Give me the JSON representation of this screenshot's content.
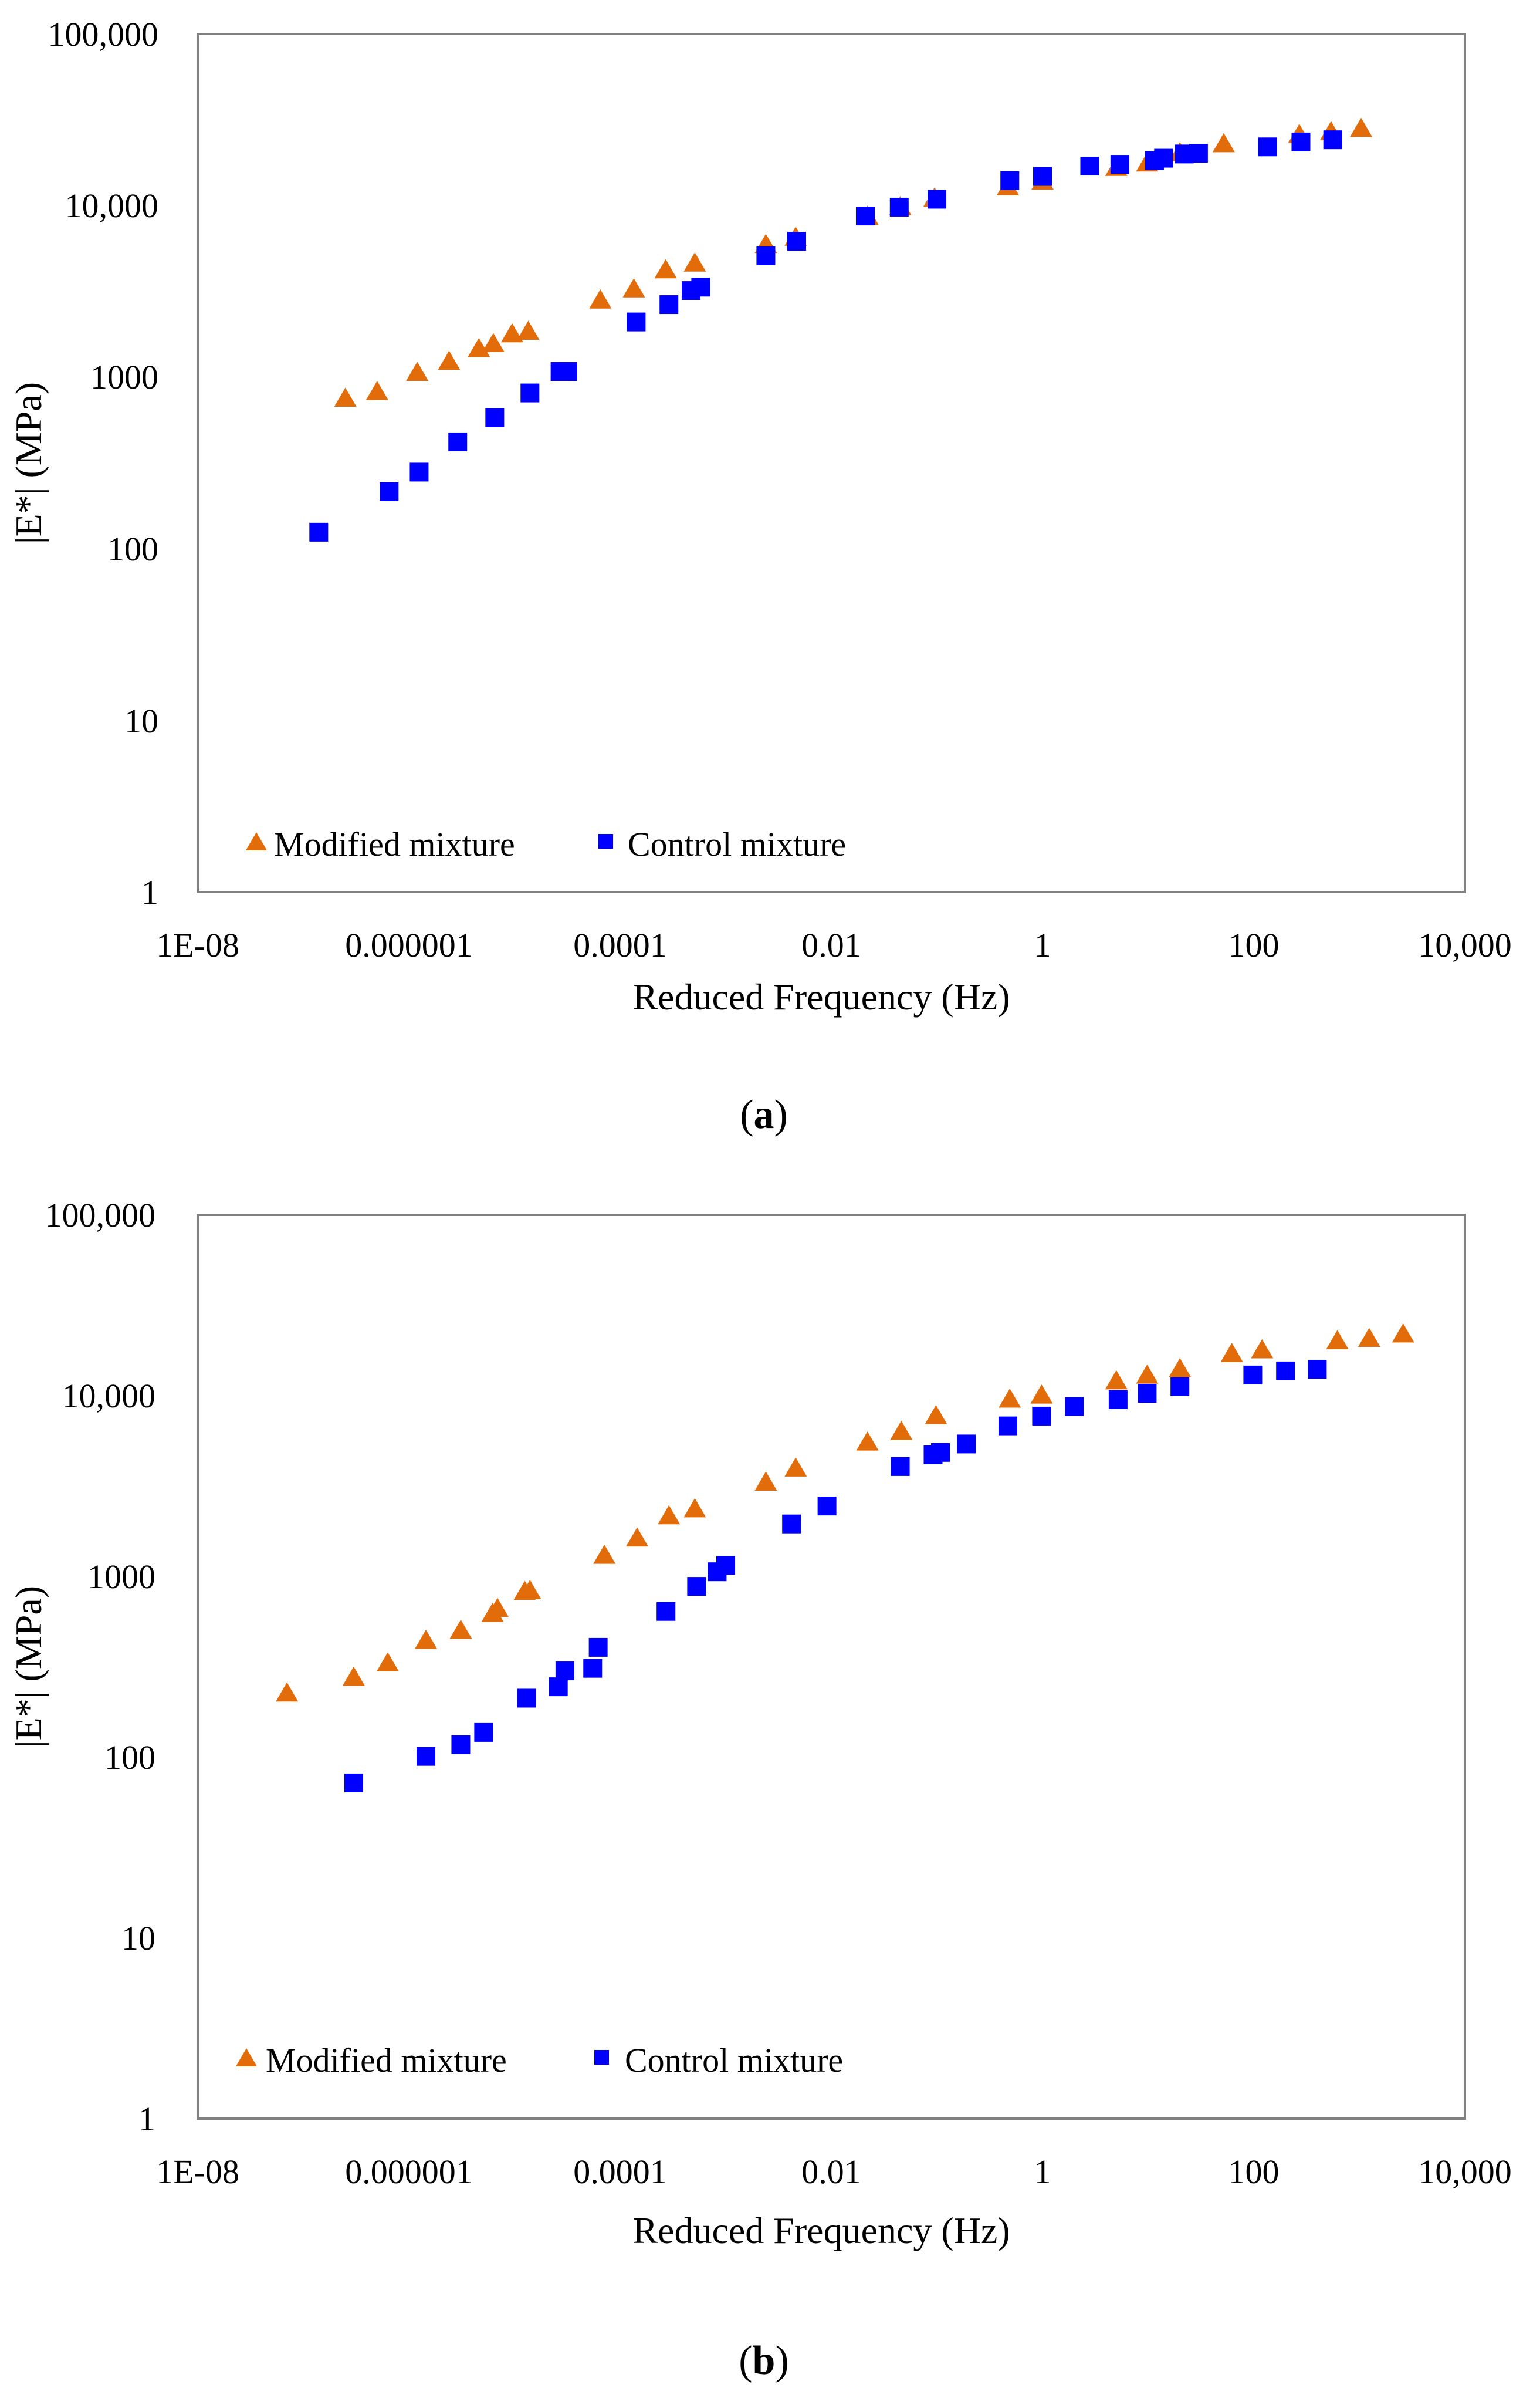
{
  "chart_data": [
    {
      "type": "scatter",
      "panel_label": {
        "open": "(",
        "letter": "a",
        "close": ")"
      },
      "xlabel": "Reduced Frequency (Hz)",
      "ylabel": "|E*| (MPa)",
      "xscale": "log",
      "yscale": "log",
      "xlim": [
        1e-08,
        10000
      ],
      "ylim": [
        1,
        100000
      ],
      "x_tick_labels": [
        "1E-08",
        "0.000001",
        "0.0001",
        "0.01",
        "1",
        "100",
        "10,000"
      ],
      "y_tick_labels": [
        "1",
        "10",
        "100",
        "1000",
        "10,000",
        "100,000"
      ],
      "legend": "bottom-left",
      "grid": false,
      "series": [
        {
          "name": "Modified mixture",
          "marker": "triangle",
          "color": "#E36C0A",
          "points": [
            [
              2.5e-07,
              750
            ],
            [
              5e-07,
              820
            ],
            [
              1.2e-06,
              1060
            ],
            [
              2.4e-06,
              1230
            ],
            [
              4.6e-06,
              1460
            ],
            [
              6.3e-06,
              1560
            ],
            [
              9.5e-06,
              1780
            ],
            [
              1.35e-05,
              1840
            ],
            [
              6.5e-05,
              2800
            ],
            [
              0.000135,
              3250
            ],
            [
              0.00027,
              4200
            ],
            [
              0.00051,
              4600
            ],
            [
              0.0024,
              5900
            ],
            [
              0.0046,
              6500
            ],
            [
              0.022,
              8600
            ],
            [
              0.045,
              9800
            ],
            [
              0.095,
              11000
            ],
            [
              0.47,
              12800
            ],
            [
              1.0,
              13800
            ],
            [
              5.0,
              16600
            ],
            [
              9.8,
              17600
            ],
            [
              20,
              20200
            ],
            [
              52,
              22800
            ],
            [
              270,
              25800
            ],
            [
              540,
              26800
            ],
            [
              1040,
              28000
            ]
          ]
        },
        {
          "name": "Control mixture",
          "marker": "square",
          "color": "#0000FF",
          "points": [
            [
              1.4e-07,
              125
            ],
            [
              6.5e-07,
              215
            ],
            [
              1.25e-06,
              280
            ],
            [
              2.9e-06,
              420
            ],
            [
              6.5e-06,
              580
            ],
            [
              1.4e-05,
              810
            ],
            [
              2.7e-05,
              1080
            ],
            [
              3.2e-05,
              1080
            ],
            [
              0.000142,
              2100
            ],
            [
              0.00029,
              2650
            ],
            [
              0.00047,
              3200
            ],
            [
              0.00058,
              3350
            ],
            [
              0.0024,
              5100
            ],
            [
              0.0047,
              6200
            ],
            [
              0.021,
              8700
            ],
            [
              0.044,
              9800
            ],
            [
              0.1,
              10900
            ],
            [
              0.49,
              14000
            ],
            [
              1.0,
              14800
            ],
            [
              2.8,
              17000
            ],
            [
              5.4,
              17400
            ],
            [
              11.5,
              18300
            ],
            [
              14,
              18900
            ],
            [
              22,
              20000
            ],
            [
              30,
              20200
            ],
            [
              135,
              22000
            ],
            [
              280,
              23500
            ],
            [
              560,
              24200
            ]
          ]
        }
      ]
    },
    {
      "type": "scatter",
      "panel_label": {
        "open": "(",
        "letter": "b",
        "close": ")"
      },
      "xlabel": "Reduced Frequency (Hz)",
      "ylabel": "|E*| (MPa)",
      "xscale": "log",
      "yscale": "log",
      "xlim": [
        1e-08,
        10000
      ],
      "ylim": [
        1,
        100000
      ],
      "x_tick_labels": [
        "1E-08",
        "0.000001",
        "0.0001",
        "0.01",
        "1",
        "100",
        "10,000"
      ],
      "y_tick_labels": [
        "1",
        "10",
        "100",
        "1000",
        "10,000",
        "100,000"
      ],
      "legend": "bottom-left",
      "grid": false,
      "series": [
        {
          "name": "Modified mixture",
          "marker": "triangle",
          "color": "#E36C0A",
          "points": [
            [
              7e-08,
              225
            ],
            [
              3e-07,
              275
            ],
            [
              6.3e-07,
              330
            ],
            [
              1.45e-06,
              440
            ],
            [
              3.1e-06,
              500
            ],
            [
              6.2e-06,
              620
            ],
            [
              6.9e-06,
              660
            ],
            [
              1.25e-05,
              820
            ],
            [
              1.4e-05,
              830
            ],
            [
              7.1e-05,
              1300
            ],
            [
              0.000145,
              1620
            ],
            [
              0.00029,
              2150
            ],
            [
              0.00051,
              2350
            ],
            [
              0.0024,
              3300
            ],
            [
              0.0046,
              3950
            ],
            [
              0.022,
              5500
            ],
            [
              0.046,
              6300
            ],
            [
              0.098,
              7700
            ],
            [
              0.49,
              9500
            ],
            [
              0.98,
              10000
            ],
            [
              5.0,
              12000
            ],
            [
              9.8,
              12900
            ],
            [
              20,
              14000
            ],
            [
              62,
              17000
            ],
            [
              120,
              17800
            ],
            [
              620,
              20000
            ],
            [
              1240,
              20600
            ],
            [
              2600,
              21800
            ]
          ]
        },
        {
          "name": "Control mixture",
          "marker": "square",
          "color": "#0000FF",
          "points": [
            [
              3e-07,
              72
            ],
            [
              1.45e-06,
              101
            ],
            [
              3.1e-06,
              117
            ],
            [
              5.1e-06,
              137
            ],
            [
              1.3e-05,
              212
            ],
            [
              2.6e-05,
              245
            ],
            [
              3e-05,
              300
            ],
            [
              5.5e-05,
              310
            ],
            [
              6.2e-05,
              405
            ],
            [
              0.000272,
              640
            ],
            [
              0.00053,
              880
            ],
            [
              0.00083,
              1060
            ],
            [
              0.001,
              1150
            ],
            [
              0.0042,
              1950
            ],
            [
              0.0091,
              2450
            ],
            [
              0.045,
              4050
            ],
            [
              0.092,
              4700
            ],
            [
              0.108,
              4850
            ],
            [
              0.19,
              5400
            ],
            [
              0.47,
              6800
            ],
            [
              0.98,
              7700
            ],
            [
              2.0,
              8700
            ],
            [
              5.2,
              9500
            ],
            [
              9.8,
              10300
            ],
            [
              20,
              11200
            ],
            [
              98,
              13000
            ],
            [
              200,
              13700
            ],
            [
              400,
              14000
            ]
          ]
        }
      ]
    }
  ]
}
